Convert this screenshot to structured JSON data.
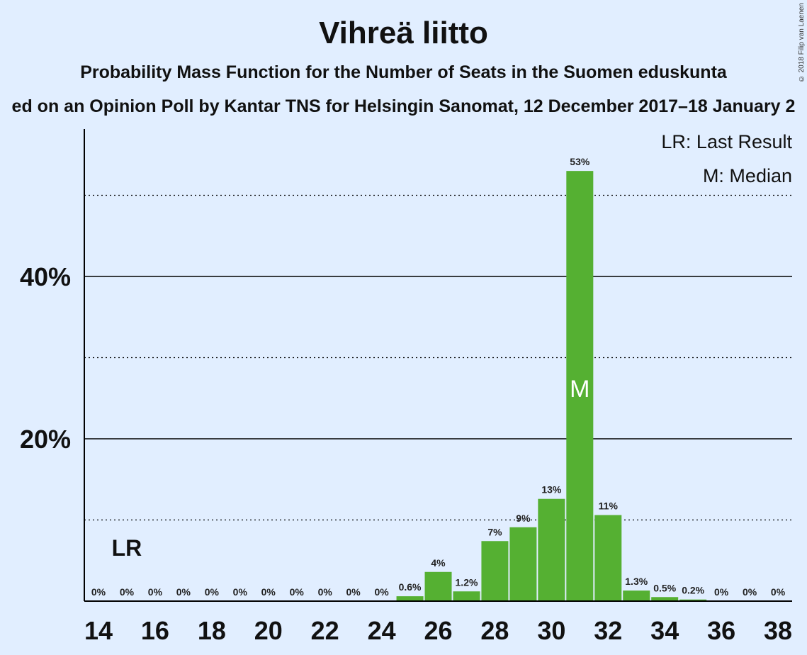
{
  "title": "Vihreä liitto",
  "subtitle": "Probability Mass Function for the Number of Seats in the Suomen eduskunta",
  "subtitle2": "ed on an Opinion Poll by Kantar TNS for Helsingin Sanomat, 12 December 2017–18 January 2",
  "copyright": "© 2018 Filip van Laenen",
  "legend": {
    "last_result": "LR: Last Result",
    "median": "M: Median"
  },
  "markers": {
    "last_result_label": "LR",
    "last_result_seat": 15,
    "median_label": "M",
    "median_seat": 31
  },
  "colors": {
    "background": "#e1eeff",
    "bar": "#55b032",
    "axis": "#000000"
  },
  "chart_data": {
    "type": "bar",
    "x": [
      14,
      15,
      16,
      17,
      18,
      19,
      20,
      21,
      22,
      23,
      24,
      25,
      26,
      27,
      28,
      29,
      30,
      31,
      32,
      33,
      34,
      35,
      36,
      37,
      38
    ],
    "values": [
      0,
      0,
      0,
      0,
      0,
      0,
      0,
      0,
      0,
      0,
      0,
      0.6,
      3.6,
      1.2,
      7.4,
      9.1,
      12.6,
      53.0,
      10.6,
      1.3,
      0.5,
      0.2,
      0,
      0,
      0
    ],
    "data_labels": [
      "0%",
      "0%",
      "0%",
      "0%",
      "0%",
      "0%",
      "0%",
      "0%",
      "0%",
      "0%",
      "0%",
      "0.6%",
      "4%",
      "1.2%",
      "7%",
      "9%",
      "13%",
      "53%",
      "11%",
      "1.3%",
      "0.5%",
      "0.2%",
      "0%",
      "0%",
      "0%"
    ],
    "x_tick_labels": [
      "14",
      "16",
      "18",
      "20",
      "22",
      "24",
      "26",
      "28",
      "30",
      "32",
      "34",
      "36",
      "38"
    ],
    "y_ticks": [
      {
        "value": 10,
        "label": "",
        "style": "dotted"
      },
      {
        "value": 20,
        "label": "20%",
        "style": "solid"
      },
      {
        "value": 30,
        "label": "",
        "style": "dotted"
      },
      {
        "value": 40,
        "label": "40%",
        "style": "solid"
      },
      {
        "value": 50,
        "label": "",
        "style": "dotted"
      }
    ],
    "ylim": [
      0,
      58
    ]
  }
}
